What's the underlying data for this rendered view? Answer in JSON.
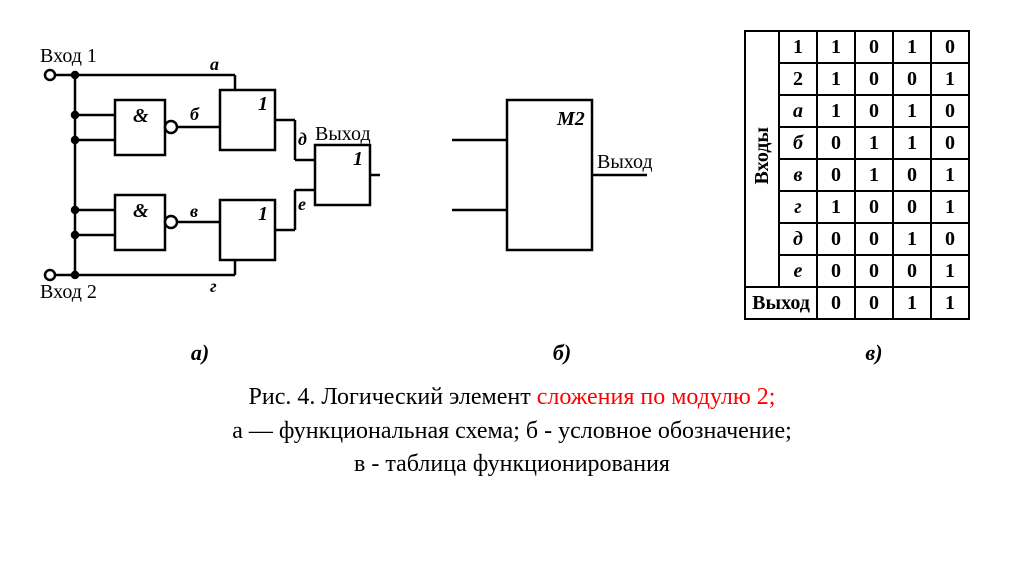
{
  "figA": {
    "input1": "Вход 1",
    "input2": "Вход 2",
    "output": "Выход",
    "gates": {
      "and": "&",
      "or": "1"
    },
    "wires": {
      "a": "а",
      "b": "б",
      "v": "в",
      "g": "г",
      "d": "д",
      "e": "е"
    }
  },
  "figB": {
    "label": "M2",
    "output": "Выход"
  },
  "truthTable": {
    "sideHeader": "Входы",
    "outputLabel": "Выход",
    "rows": [
      {
        "label": "1",
        "vals": [
          "1",
          "0",
          "1",
          "0"
        ],
        "italic": false
      },
      {
        "label": "2",
        "vals": [
          "1",
          "0",
          "0",
          "1"
        ],
        "italic": false
      },
      {
        "label": "а",
        "vals": [
          "1",
          "0",
          "1",
          "0"
        ],
        "italic": true
      },
      {
        "label": "б",
        "vals": [
          "0",
          "1",
          "1",
          "0"
        ],
        "italic": true
      },
      {
        "label": "в",
        "vals": [
          "0",
          "1",
          "0",
          "1"
        ],
        "italic": true
      },
      {
        "label": "г",
        "vals": [
          "1",
          "0",
          "0",
          "1"
        ],
        "italic": true
      },
      {
        "label": "д",
        "vals": [
          "0",
          "0",
          "1",
          "0"
        ],
        "italic": true
      },
      {
        "label": "е",
        "vals": [
          "0",
          "0",
          "0",
          "1"
        ],
        "italic": true
      }
    ],
    "outputRow": [
      "0",
      "0",
      "1",
      "1"
    ]
  },
  "subLabels": {
    "a": "а)",
    "b": "б)",
    "c": "в)"
  },
  "caption": {
    "line1_black": "Рис. 4.  Логический элемент ",
    "line1_red": "сложения по модулю 2;",
    "line2": "а — функциональная схема; б - условное обозначение;",
    "line3": "в - таблица функционирования"
  },
  "style": {
    "stroke": "#000000",
    "strokeWidth": 2.5,
    "background": "#ffffff"
  }
}
